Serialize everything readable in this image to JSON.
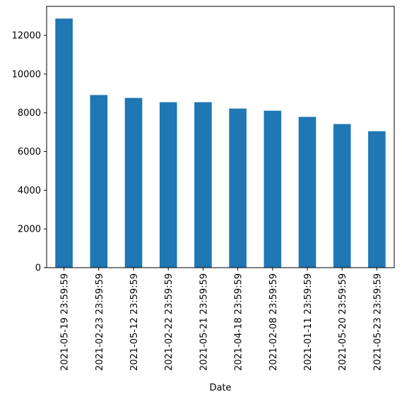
{
  "chart_data": {
    "type": "bar",
    "xlabel": "Date",
    "ylabel": "",
    "title": "",
    "categories": [
      "2021-05-19 23:59:59",
      "2021-02-23 23:59:59",
      "2021-05-12 23:59:59",
      "2021-02-22 23:59:59",
      "2021-05-21 23:59:59",
      "2021-04-18 23:59:59",
      "2021-02-08 23:59:59",
      "2021-01-11 23:59:59",
      "2021-05-20 23:59:59",
      "2021-05-23 23:59:59"
    ],
    "values": [
      12870,
      8920,
      8770,
      8550,
      8550,
      8220,
      8110,
      7790,
      7420,
      7050
    ],
    "ylim": [
      0,
      13500
    ],
    "yticks": [
      0,
      2000,
      4000,
      6000,
      8000,
      10000,
      12000
    ],
    "bar_color": "#1f77b4",
    "grid": false
  }
}
